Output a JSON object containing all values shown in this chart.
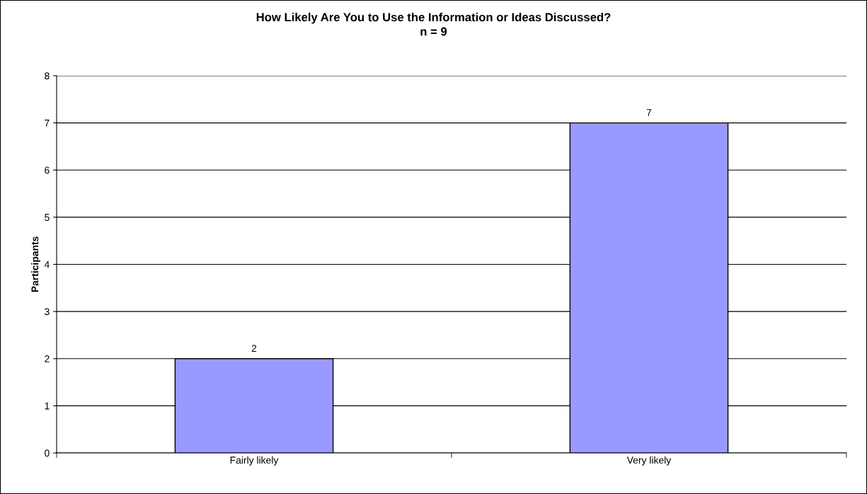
{
  "chart_data": {
    "type": "bar",
    "title": "How Likely Are You to Use the Information or Ideas Discussed?",
    "subtitle": "n = 9",
    "ylabel": "Participants",
    "categories": [
      "Fairly likely",
      "Very likely"
    ],
    "values": [
      2,
      7
    ],
    "color": "#9999ff",
    "ylim": [
      0,
      8
    ],
    "yticks": [
      0,
      1,
      2,
      3,
      4,
      5,
      6,
      7,
      8
    ],
    "grid": "y",
    "data_labels": true,
    "legend": false
  }
}
